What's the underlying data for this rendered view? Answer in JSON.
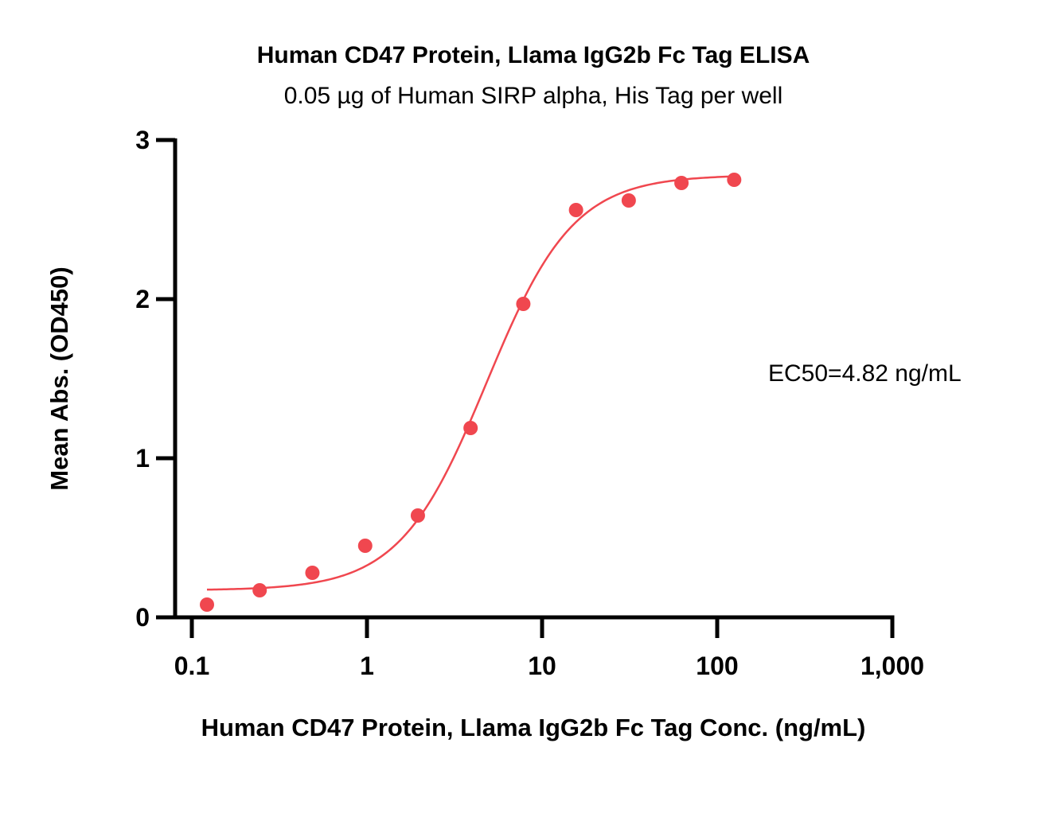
{
  "chart_data": {
    "type": "scatter",
    "title": "Human CD47 Protein, Llama IgG2b Fc Tag ELISA",
    "subtitle": "0.05 µg of Human SIRP alpha, His Tag per well",
    "xlabel": "Human CD47 Protein, Llama IgG2b Fc Tag Conc. (ng/mL)",
    "ylabel": "Mean Abs. (OD450)",
    "xscale": "log",
    "xlim": [
      0.1,
      1000
    ],
    "ylim": [
      0,
      3
    ],
    "x_ticks": [
      {
        "value": 0.1,
        "label": "0.1"
      },
      {
        "value": 1,
        "label": "1"
      },
      {
        "value": 10,
        "label": "10"
      },
      {
        "value": 100,
        "label": "100"
      },
      {
        "value": 1000,
        "label": "1,000"
      }
    ],
    "y_ticks": [
      {
        "value": 0,
        "label": "0"
      },
      {
        "value": 1,
        "label": "1"
      },
      {
        "value": 2,
        "label": "2"
      },
      {
        "value": 3,
        "label": "3"
      }
    ],
    "grid": false,
    "legend": "none",
    "color": "#f0474f",
    "series": [
      {
        "x": [
          0.122,
          0.244,
          0.488,
          0.977,
          1.953,
          3.906,
          7.813,
          15.625,
          31.25,
          62.5,
          125
        ],
        "y": [
          0.08,
          0.17,
          0.28,
          0.45,
          0.64,
          1.19,
          1.97,
          2.56,
          2.62,
          2.73,
          2.75
        ]
      }
    ],
    "fit": {
      "model": "4PL",
      "bottom": 0.17,
      "top": 2.78,
      "ec50": 4.82,
      "hill": 1.75
    },
    "annotations": [
      {
        "text": "EC50=4.82 ng/mL"
      }
    ]
  }
}
